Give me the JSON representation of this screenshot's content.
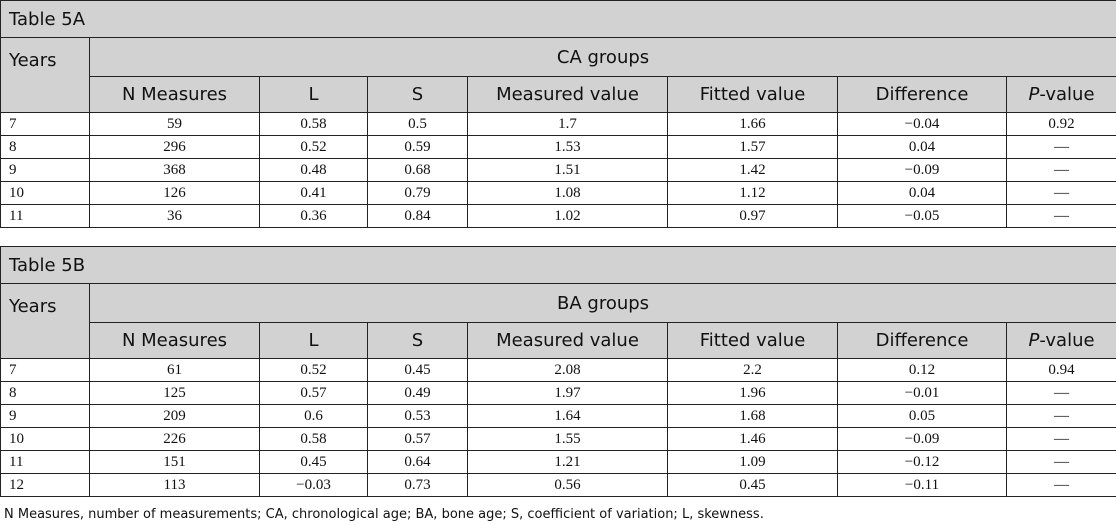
{
  "tableA": {
    "title": "Table 5A",
    "years_label": "Years",
    "group_label": "CA groups",
    "columns": [
      "N Measures",
      "L",
      "S",
      "Measured value",
      "Fitted value",
      "Difference",
      "P-value"
    ],
    "rows": [
      [
        "7",
        "59",
        "0.58",
        "0.5",
        "1.7",
        "1.66",
        "−0.04",
        "0.92"
      ],
      [
        "8",
        "296",
        "0.52",
        "0.59",
        "1.53",
        "1.57",
        "0.04",
        "—"
      ],
      [
        "9",
        "368",
        "0.48",
        "0.68",
        "1.51",
        "1.42",
        "−0.09",
        "—"
      ],
      [
        "10",
        "126",
        "0.41",
        "0.79",
        "1.08",
        "1.12",
        "0.04",
        "—"
      ],
      [
        "11",
        "36",
        "0.36",
        "0.84",
        "1.02",
        "0.97",
        "−0.05",
        "—"
      ]
    ]
  },
  "tableB": {
    "title": "Table 5B",
    "years_label": "Years",
    "group_label": "BA groups",
    "columns": [
      "N Measures",
      "L",
      "S",
      "Measured value",
      "Fitted value",
      "Difference",
      "P-value"
    ],
    "rows": [
      [
        "7",
        "61",
        "0.52",
        "0.45",
        "2.08",
        "2.2",
        "0.12",
        "0.94"
      ],
      [
        "8",
        "125",
        "0.57",
        "0.49",
        "1.97",
        "1.96",
        "−0.01",
        "—"
      ],
      [
        "9",
        "209",
        "0.6",
        "0.53",
        "1.64",
        "1.68",
        "0.05",
        "—"
      ],
      [
        "10",
        "226",
        "0.58",
        "0.57",
        "1.55",
        "1.46",
        "−0.09",
        "—"
      ],
      [
        "11",
        "151",
        "0.45",
        "0.64",
        "1.21",
        "1.09",
        "−0.12",
        "—"
      ],
      [
        "12",
        "113",
        "−0.03",
        "0.73",
        "0.56",
        "0.45",
        "−0.11",
        "—"
      ]
    ]
  },
  "footnote": "N Measures, number of measurements; CA, chronological age; BA, bone age; S, coefficient of variation; L, skewness."
}
